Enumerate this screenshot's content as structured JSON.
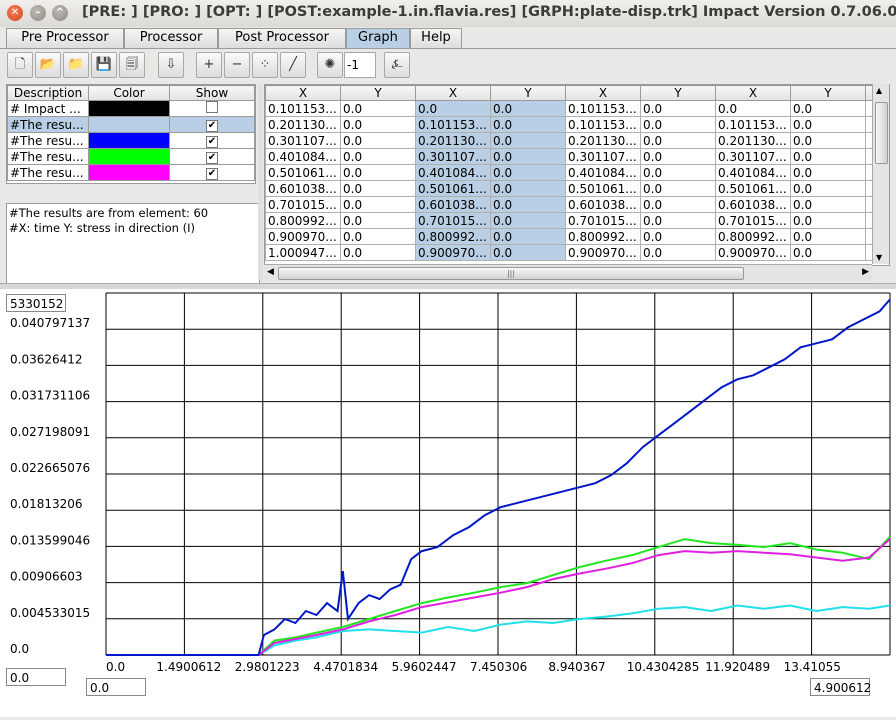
{
  "window": {
    "title": "[PRE: ] [PRO: ] [OPT: ] [POST:example-1.in.flavia.res] [GRPH:plate-disp.trk] Impact Version 0.7.06.035"
  },
  "tabs": [
    {
      "label": "Pre Processor"
    },
    {
      "label": "Processor"
    },
    {
      "label": "Post Processor"
    },
    {
      "label": "Graph",
      "active": true
    },
    {
      "label": "Help"
    }
  ],
  "toolbar": {
    "buttons": [
      "new-file-icon",
      "open-file-icon",
      "import-file-icon",
      "save-icon",
      "save-all-icon",
      "arrow-down-icon",
      "add-point-icon",
      "remove-point-icon",
      "select-point-icon",
      "draw-line-icon",
      "spinner-icon",
      "axis-label-icon"
    ],
    "step_value": "-1"
  },
  "series_table": {
    "headers": [
      "Description",
      "Color",
      "Show"
    ],
    "rows": [
      {
        "description": "# Impact ...",
        "color": "#000000",
        "show": false,
        "selected": false
      },
      {
        "description": "#The resu...",
        "color": "#b8cfe5",
        "show": true,
        "selected": true
      },
      {
        "description": "#The resu...",
        "color": "#0000ff",
        "show": true,
        "selected": false
      },
      {
        "description": "#The resu...",
        "color": "#00ff00",
        "show": true,
        "selected": false
      },
      {
        "description": "#The resu...",
        "color": "#ff00ff",
        "show": true,
        "selected": false
      }
    ]
  },
  "info_text": {
    "line1": "#The results are from element: 60",
    "line2": "#X: time   Y: stress in direction (I)"
  },
  "data_table": {
    "headers": [
      "X",
      "Y",
      "X",
      "Y",
      "X",
      "Y",
      "X",
      "Y"
    ],
    "rows": [
      [
        "0.101153...",
        "0.0",
        "0.0",
        "0.0",
        "0.101153...",
        "0.0",
        "0.0",
        "0.0"
      ],
      [
        "0.201130...",
        "0.0",
        "0.101153...",
        "0.0",
        "0.101153...",
        "0.0",
        "0.101153...",
        "0.0"
      ],
      [
        "0.301107...",
        "0.0",
        "0.201130...",
        "0.0",
        "0.201130...",
        "0.0",
        "0.201130...",
        "0.0"
      ],
      [
        "0.401084...",
        "0.0",
        "0.301107...",
        "0.0",
        "0.301107...",
        "0.0",
        "0.301107...",
        "0.0"
      ],
      [
        "0.501061...",
        "0.0",
        "0.401084...",
        "0.0",
        "0.401084...",
        "0.0",
        "0.401084...",
        "0.0"
      ],
      [
        "0.601038...",
        "0.0",
        "0.501061...",
        "0.0",
        "0.501061...",
        "0.0",
        "0.501061...",
        "0.0"
      ],
      [
        "0.701015...",
        "0.0",
        "0.601038...",
        "0.0",
        "0.601038...",
        "0.0",
        "0.601038...",
        "0.0"
      ],
      [
        "0.800992...",
        "0.0",
        "0.701015...",
        "0.0",
        "0.701015...",
        "0.0",
        "0.701015...",
        "0.0"
      ],
      [
        "0.900970...",
        "0.0",
        "0.800992...",
        "0.0",
        "0.800992...",
        "0.0",
        "0.800992...",
        "0.0"
      ],
      [
        "1.000947...",
        "0.0",
        "0.900970...",
        "0.0",
        "0.900970...",
        "0.0",
        "0.900970...",
        "0.0"
      ]
    ]
  },
  "graph": {
    "y_max_field": "5330152",
    "y_min_field": "0.0",
    "x_min_field": "0.0",
    "x_max_field": "4.900612"
  },
  "chart_data": {
    "type": "line",
    "xlim": [
      0.0,
      14.9
    ],
    "ylim": [
      0.0,
      0.0453
    ],
    "xticks": [
      "0.0",
      "1.4900612",
      "2.9801223",
      "4.4701834",
      "5.9602447",
      "7.450306",
      "8.940367",
      "10.4304285",
      "11.920489",
      "13.41055"
    ],
    "yticks": [
      "0.0",
      "0.004533015",
      "0.00906603",
      "0.013599046",
      "0.01813206",
      "0.022665076",
      "0.027198091",
      "0.031731106",
      "0.03626412",
      "0.040797137"
    ],
    "grid": true,
    "series": [
      {
        "color": "#0018c8",
        "x": [
          0,
          2.9,
          3.0,
          3.2,
          3.4,
          3.6,
          3.8,
          4.0,
          4.2,
          4.4,
          4.5,
          4.6,
          4.8,
          5.0,
          5.2,
          5.4,
          5.6,
          5.8,
          6.0,
          6.3,
          6.6,
          6.9,
          7.2,
          7.5,
          7.8,
          8.1,
          8.4,
          8.7,
          9.0,
          9.3,
          9.6,
          9.9,
          10.2,
          10.5,
          10.8,
          11.1,
          11.4,
          11.7,
          12.0,
          12.3,
          12.6,
          12.9,
          13.2,
          13.5,
          13.8,
          14.1,
          14.4,
          14.7,
          14.9
        ],
        "y": [
          0,
          0,
          0.0025,
          0.0032,
          0.0045,
          0.004,
          0.0055,
          0.005,
          0.0065,
          0.0055,
          0.0105,
          0.0045,
          0.0065,
          0.0075,
          0.007,
          0.0082,
          0.0088,
          0.012,
          0.013,
          0.0135,
          0.015,
          0.016,
          0.0175,
          0.0185,
          0.019,
          0.0195,
          0.02,
          0.0205,
          0.021,
          0.0215,
          0.0225,
          0.024,
          0.026,
          0.0275,
          0.029,
          0.0305,
          0.032,
          0.0335,
          0.0345,
          0.035,
          0.036,
          0.037,
          0.0385,
          0.039,
          0.0395,
          0.041,
          0.042,
          0.043,
          0.0445
        ]
      },
      {
        "color": "#22e622",
        "x": [
          0,
          2.9,
          3.2,
          3.6,
          4.0,
          4.5,
          5.0,
          5.5,
          6.0,
          6.5,
          7.0,
          7.5,
          8.0,
          8.5,
          9.0,
          9.5,
          10.0,
          10.5,
          11.0,
          11.5,
          12.0,
          12.5,
          13.0,
          13.5,
          14.0,
          14.5,
          14.9
        ],
        "y": [
          0,
          0,
          0.0018,
          0.0022,
          0.0028,
          0.0035,
          0.0045,
          0.0055,
          0.0065,
          0.0072,
          0.0078,
          0.0085,
          0.009,
          0.01,
          0.011,
          0.0118,
          0.0125,
          0.0135,
          0.0145,
          0.014,
          0.0138,
          0.0135,
          0.014,
          0.0132,
          0.0128,
          0.012,
          0.0148
        ]
      },
      {
        "color": "#e020e0",
        "x": [
          0,
          2.9,
          3.2,
          3.6,
          4.0,
          4.5,
          5.0,
          5.5,
          6.0,
          6.5,
          7.0,
          7.5,
          8.0,
          8.5,
          9.0,
          9.5,
          10.0,
          10.5,
          11.0,
          11.5,
          12.0,
          12.5,
          13.0,
          13.5,
          14.0,
          14.5,
          14.9
        ],
        "y": [
          0,
          0,
          0.0015,
          0.002,
          0.0025,
          0.0032,
          0.0042,
          0.005,
          0.006,
          0.0066,
          0.0072,
          0.0078,
          0.0085,
          0.0095,
          0.0102,
          0.0108,
          0.0115,
          0.0125,
          0.013,
          0.0128,
          0.013,
          0.0128,
          0.0126,
          0.0122,
          0.0118,
          0.0122,
          0.0145
        ]
      },
      {
        "color": "#20e0e8",
        "x": [
          0,
          2.9,
          3.2,
          3.6,
          4.0,
          4.5,
          5.0,
          5.5,
          6.0,
          6.5,
          7.0,
          7.5,
          8.0,
          8.5,
          9.0,
          9.5,
          10.0,
          10.5,
          11.0,
          11.5,
          12.0,
          12.5,
          13.0,
          13.5,
          14.0,
          14.5,
          14.9
        ],
        "y": [
          0,
          0,
          0.0012,
          0.0018,
          0.0022,
          0.003,
          0.0032,
          0.003,
          0.0028,
          0.0035,
          0.003,
          0.0038,
          0.0042,
          0.004,
          0.0045,
          0.0048,
          0.0052,
          0.0058,
          0.006,
          0.0055,
          0.0062,
          0.0058,
          0.0062,
          0.0055,
          0.006,
          0.0058,
          0.0062
        ]
      }
    ]
  }
}
